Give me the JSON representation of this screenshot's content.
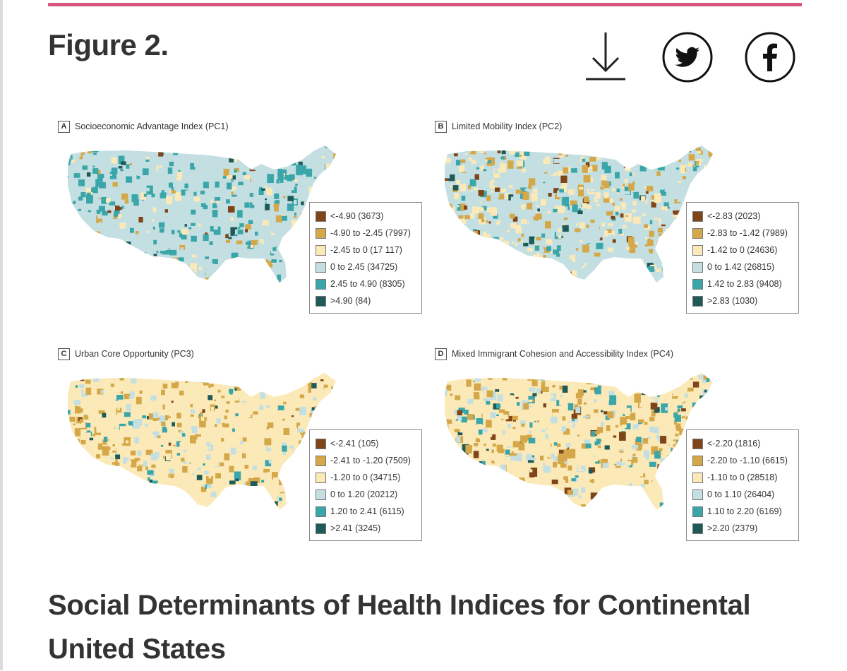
{
  "header": {
    "figure_title": "Figure 2.",
    "icons": {
      "download": "download-icon",
      "twitter": "twitter-icon",
      "facebook": "facebook-icon"
    }
  },
  "palette": {
    "brown": "#7f4518",
    "gold": "#d4a849",
    "cream": "#fbe9b8",
    "lightblue": "#c4dfe2",
    "teal": "#3aa6a9",
    "darkteal": "#1e5a58",
    "accent_rule": "#d9547d"
  },
  "panels": {
    "a": {
      "letter": "A",
      "title": "Socioeconomic Advantage Index (PC1)",
      "legend": [
        "<-4.90 (3673)",
        "-4.90 to -2.45 (7997)",
        "-2.45 to 0 (17 117)",
        "0 to 2.45 (34725)",
        "2.45 to 4.90 (8305)",
        ">4.90 (84)"
      ]
    },
    "b": {
      "letter": "B",
      "title": "Limited Mobility Index (PC2)",
      "legend": [
        "<-2.83 (2023)",
        "-2.83 to -1.42 (7989)",
        "-1.42 to 0 (24636)",
        "0 to 1.42 (26815)",
        "1.42 to 2.83 (9408)",
        ">2.83 (1030)"
      ]
    },
    "c": {
      "letter": "C",
      "title": "Urban Core Opportunity (PC3)",
      "legend": [
        "<-2.41 (105)",
        "-2.41 to -1.20 (7509)",
        "-1.20 to 0 (34715)",
        "0 to 1.20 (20212)",
        "1.20 to 2.41 (6115)",
        ">2.41 (3245)"
      ]
    },
    "d": {
      "letter": "D",
      "title": "Mixed Immigrant Cohesion and Accessibility Index (PC4)",
      "legend": [
        "<-2.20 (1816)",
        "-2.20 to -1.10 (6615)",
        "-1.10 to 0 (28518)",
        "0 to 1.10 (26404)",
        "1.10 to 2.20 (6169)",
        ">2.20 (2379)"
      ]
    }
  },
  "caption": {
    "title": "Social Determinants of Health Indices for Continental United States"
  }
}
